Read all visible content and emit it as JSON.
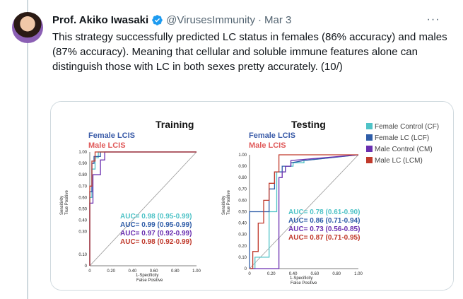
{
  "tweet": {
    "author_name": "Prof. Akiko Iwasaki",
    "handle": "@VirusesImmunity",
    "separator": "·",
    "date": "Mar 3",
    "more_label": "···",
    "text": "This strategy successfully predicted LC status in females (86% accuracy) and males (87% accuracy). Meaning that cellular and soluble immune features alone can distinguish those with LC in both sexes pretty accurately. (10/)"
  },
  "colors": {
    "female_control": "#4fc3c7",
    "female_lc": "#2f5da8",
    "male_control": "#6a2fb0",
    "male_lc": "#c0392b",
    "female_label": "#3a5ba8",
    "male_label": "#e05a5a"
  },
  "figure": {
    "training": {
      "title": "Training",
      "female_label": "Female LCIS",
      "male_label": "Male LCIS",
      "x_ticks": [
        "0",
        "0.20",
        "0.40",
        "0.60",
        "0.80",
        "1.00"
      ],
      "y_ticks": [
        "1.00",
        "0.90",
        "0.80",
        "0.70",
        "0.60",
        "0.50",
        "0.40",
        "0.30",
        "0.10",
        "0"
      ],
      "y_label_1": "Sensitivity",
      "y_label_2": "True Positive",
      "x_label_1": "1-Specificity",
      "x_label_2": "False Positive",
      "auc": [
        "AUC= 0.98 (0.95-0.99)",
        "AUC= 0.99 (0.95-0.99)",
        "AUC= 0.97 (0.92-0.99)",
        "AUC= 0.98 (0.92-0.99)"
      ]
    },
    "testing": {
      "title": "Testing",
      "female_label": "Female LCIS",
      "male_label": "Male LCIS",
      "x_ticks": [
        "0",
        "0.20",
        "0.40",
        "0.60",
        "0.80",
        "1.00"
      ],
      "y_ticks": [
        "1.00",
        "0.90",
        "0.80",
        "0.70",
        "0.60",
        "0.50",
        "0.40",
        "0.30",
        "0.20",
        "0.10",
        "0"
      ],
      "y_label_1": "Sensitivity",
      "y_label_2": "True Positive",
      "x_label_1": "1-Specificity",
      "x_label_2": "False Positive",
      "auc": [
        "AUC= 0.78 (0.61-0.90)",
        "AUC= 0.86 (0.71-0.94)",
        "AUC= 0.73 (0.56-0.85)",
        "AUC= 0.87 (0.71-0.95)"
      ]
    },
    "legend": [
      "Female Control (CF)",
      "Female LC (LCF)",
      "Male Control (CM)",
      "Male LC (LCM)"
    ]
  },
  "chart_data": [
    {
      "type": "line",
      "title": "Training",
      "xlabel": "1-Specificity False Positive",
      "ylabel": "Sensitivity True Positive",
      "xlim": [
        0,
        1
      ],
      "ylim": [
        0,
        1
      ],
      "series": [
        {
          "name": "Female Control (CF)",
          "x": [
            0,
            0,
            0.02,
            0.02,
            0.05,
            0.05,
            0.08,
            0.08,
            1
          ],
          "y": [
            0,
            0.6,
            0.6,
            0.85,
            0.85,
            0.95,
            0.95,
            1,
            1
          ]
        },
        {
          "name": "Female LC (LCF)",
          "x": [
            0,
            0,
            0.02,
            0.02,
            0.04,
            0.04,
            0.1,
            0.1,
            1
          ],
          "y": [
            0,
            0.65,
            0.65,
            0.9,
            0.9,
            0.96,
            0.96,
            1,
            1
          ]
        },
        {
          "name": "Male Control (CM)",
          "x": [
            0,
            0,
            0.03,
            0.03,
            0.1,
            0.1,
            0.14,
            0.14,
            1
          ],
          "y": [
            0,
            0.55,
            0.55,
            0.8,
            0.8,
            0.93,
            0.93,
            1,
            1
          ]
        },
        {
          "name": "Male LC (LCM)",
          "x": [
            0,
            0,
            0.02,
            0.02,
            0.05,
            0.05,
            1
          ],
          "y": [
            0,
            0.7,
            0.7,
            0.92,
            0.92,
            1,
            1
          ]
        }
      ]
    },
    {
      "type": "line",
      "title": "Testing",
      "xlabel": "1-Specificity False Positive",
      "ylabel": "Sensitivity True Positive",
      "xlim": [
        0,
        1
      ],
      "ylim": [
        0,
        1
      ],
      "series": [
        {
          "name": "Female Control (CF)",
          "x": [
            0,
            0.05,
            0.05,
            0.18,
            0.18,
            0.25,
            0.25,
            0.33,
            0.33,
            0.4,
            0.4,
            0.5,
            0.5,
            1
          ],
          "y": [
            0,
            0,
            0.1,
            0.1,
            0.5,
            0.5,
            0.85,
            0.85,
            0.9,
            0.9,
            0.93,
            0.93,
            0.95,
            1
          ]
        },
        {
          "name": "Female LC (LCF)",
          "x": [
            0,
            0,
            0.18,
            0.18,
            0.23,
            0.23,
            0.3,
            0.3,
            0.38,
            0.38,
            0.5,
            1
          ],
          "y": [
            0,
            0.5,
            0.5,
            0.7,
            0.7,
            0.85,
            0.85,
            0.9,
            0.9,
            0.93,
            0.95,
            1
          ]
        },
        {
          "name": "Male Control (CM)",
          "x": [
            0,
            0.27,
            0.27,
            0.3,
            0.3,
            0.33,
            0.33,
            0.38,
            0.38,
            1
          ],
          "y": [
            0,
            0,
            0.8,
            0.8,
            0.85,
            0.85,
            0.9,
            0.9,
            0.95,
            1
          ]
        },
        {
          "name": "Male LC (LCM)",
          "x": [
            0,
            0.03,
            0.03,
            0.08,
            0.08,
            0.13,
            0.13,
            0.18,
            0.18,
            0.23,
            0.23,
            0.27,
            0.27,
            1
          ],
          "y": [
            0,
            0,
            0.15,
            0.15,
            0.4,
            0.4,
            0.6,
            0.6,
            0.75,
            0.75,
            0.85,
            0.85,
            1,
            1
          ]
        }
      ]
    }
  ]
}
